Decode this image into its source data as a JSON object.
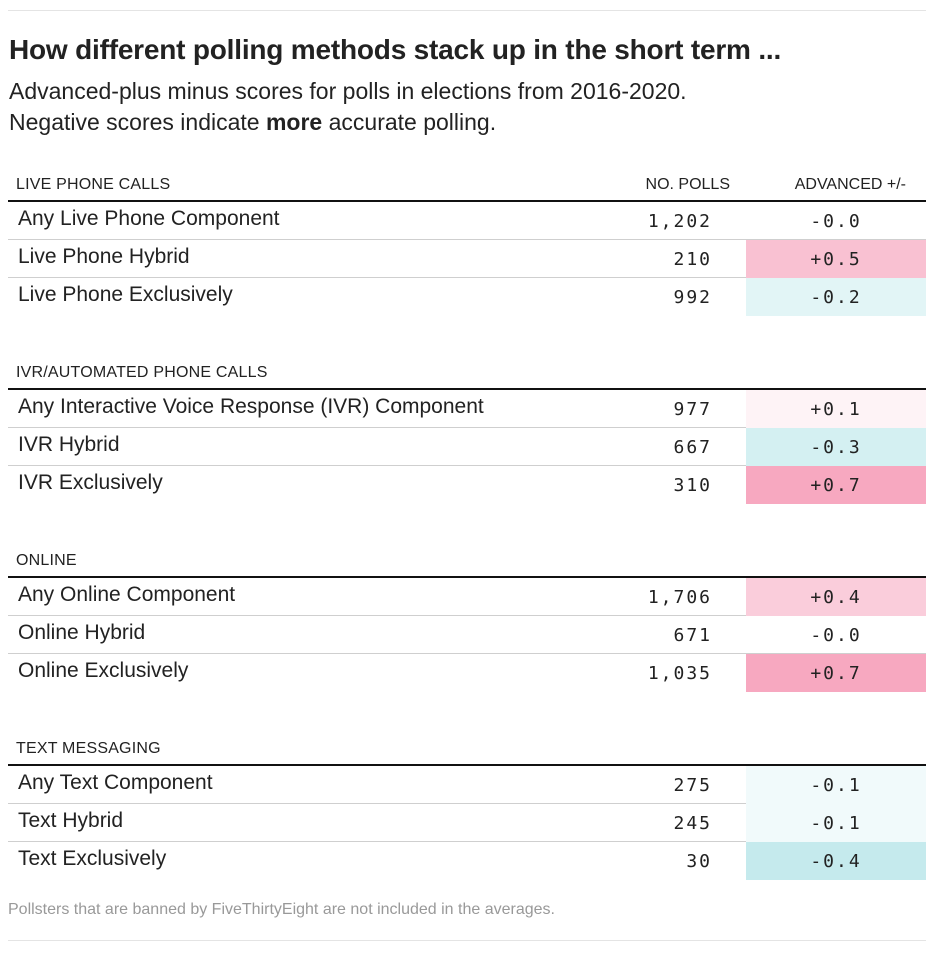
{
  "title": "How different polling methods stack up in the short term ...",
  "subtitle_line1": "Advanced-plus minus scores for polls in elections from 2016-2020.",
  "subtitle_pre": "Negative scores indicate ",
  "subtitle_bold": "more",
  "subtitle_post": " accurate polling.",
  "footnote": "Pollsters that are banned by FiveThirtyEight are not included in the averages.",
  "colors": {
    "positive": "#f7a8c0",
    "negative": "#9adbe0"
  },
  "chart_data": {
    "type": "table",
    "columns": [
      "NO. POLLS",
      "ADVANCED +/-"
    ],
    "sections": [
      {
        "label": "LIVE PHONE CALLS",
        "rows": [
          {
            "name": "Any Live Phone Component",
            "polls": "1,202",
            "adv": "-0.0",
            "value": -0.0
          },
          {
            "name": "Live Phone Hybrid",
            "polls": "210",
            "adv": "+0.5",
            "value": 0.5
          },
          {
            "name": "Live Phone Exclusively",
            "polls": "992",
            "adv": "-0.2",
            "value": -0.2
          }
        ]
      },
      {
        "label": "IVR/AUTOMATED PHONE CALLS",
        "rows": [
          {
            "name": "Any Interactive Voice Response (IVR) Component",
            "polls": "977",
            "adv": "+0.1",
            "value": 0.1
          },
          {
            "name": "IVR Hybrid",
            "polls": "667",
            "adv": "-0.3",
            "value": -0.3
          },
          {
            "name": "IVR Exclusively",
            "polls": "310",
            "adv": "+0.7",
            "value": 0.7
          }
        ]
      },
      {
        "label": "ONLINE",
        "rows": [
          {
            "name": "Any Online Component",
            "polls": "1,706",
            "adv": "+0.4",
            "value": 0.4
          },
          {
            "name": "Online Hybrid",
            "polls": "671",
            "adv": "-0.0",
            "value": -0.0
          },
          {
            "name": "Online Exclusively",
            "polls": "1,035",
            "adv": "+0.7",
            "value": 0.7
          }
        ]
      },
      {
        "label": "TEXT MESSAGING",
        "rows": [
          {
            "name": "Any Text Component",
            "polls": "275",
            "adv": "-0.1",
            "value": -0.1
          },
          {
            "name": "Text Hybrid",
            "polls": "245",
            "adv": "-0.1",
            "value": -0.1
          },
          {
            "name": "Text Exclusively",
            "polls": "30",
            "adv": "-0.4",
            "value": -0.4
          }
        ]
      }
    ]
  }
}
